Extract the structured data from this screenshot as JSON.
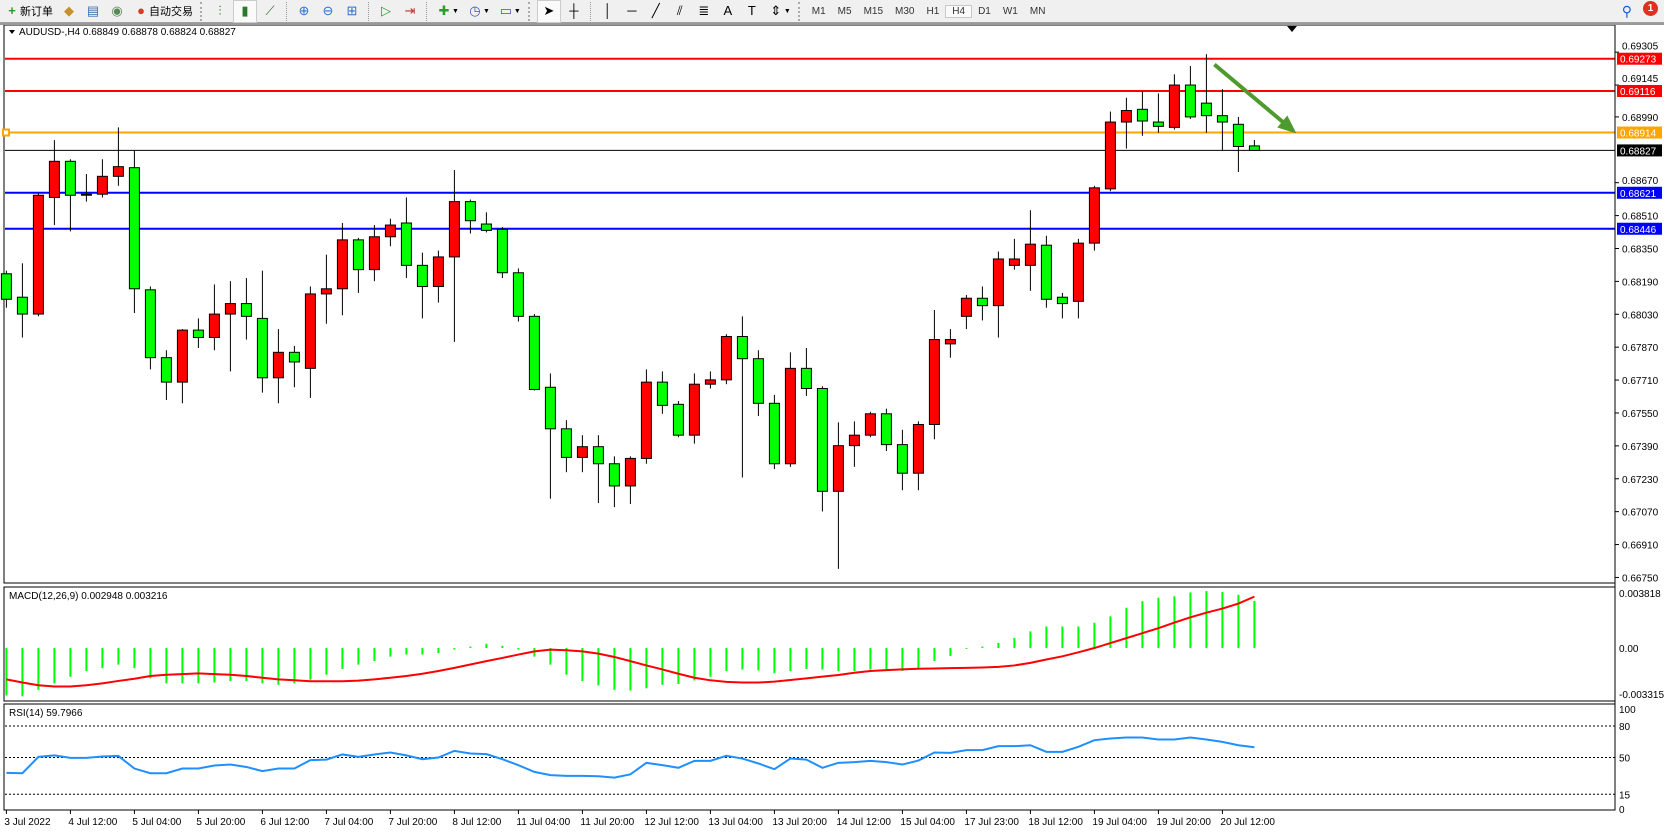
{
  "toolbar": {
    "new_order_label": "新订单",
    "auto_trading_label": "自动交易",
    "timeframes": [
      "M1",
      "M5",
      "M15",
      "M30",
      "H1",
      "H4",
      "D1",
      "W1",
      "MN"
    ],
    "active_timeframe": "H4",
    "notification_count": "1",
    "icons": [
      "new-order-icon",
      "market-watch-icon",
      "navigator-icon",
      "signals-icon",
      "auto-trading-icon",
      "bar-chart-icon",
      "candlestick-icon",
      "line-chart-icon",
      "zoom-in-icon",
      "zoom-out-icon",
      "tile-windows-icon",
      "auto-scroll-icon",
      "chart-shift-icon",
      "indicators-icon",
      "periods-icon",
      "templates-icon",
      "cursor-icon",
      "crosshair-icon",
      "vertical-line-icon",
      "horizontal-line-icon",
      "trendline-icon",
      "equidistant-channel-icon",
      "fibonacci-icon",
      "text-icon",
      "text-label-icon",
      "arrows-icon",
      "search-icon",
      "notification-icon"
    ]
  },
  "chart": {
    "header": "AUDUSD-,H4  0.68849 0.68878 0.68824 0.68827",
    "colors": {
      "up": "#ff0000",
      "down": "#00ff00",
      "macd_hist": "#00ff00",
      "signal": "#ff0000",
      "rsi": "#1e90ff",
      "arrow": "#4e9a2e"
    },
    "price_ticks": [
      "0.69305",
      "0.69145",
      "0.68990",
      "0.68670",
      "0.68510",
      "0.68350",
      "0.68190",
      "0.68030",
      "0.67870",
      "0.67710",
      "0.67550",
      "0.67390",
      "0.67230",
      "0.67070",
      "0.66910",
      "0.66750"
    ],
    "price_range": [
      0.66723,
      0.69437
    ],
    "levels": [
      {
        "price": "0.69273",
        "color": "#ff0000"
      },
      {
        "price": "0.69116",
        "color": "#ff0000"
      },
      {
        "price": "0.68914",
        "color": "#ffa500"
      },
      {
        "price": "0.68827",
        "color": "#000000"
      },
      {
        "price": "0.68621",
        "color": "#0000ff"
      },
      {
        "price": "0.68446",
        "color": "#0000ff"
      }
    ],
    "arrow": {
      "from": [
        75,
        0.69245
      ],
      "to": [
        80,
        0.6891
      ]
    },
    "time_labels": [
      "3 Jul 2022",
      "4 Jul 12:00",
      "5 Jul 04:00",
      "5 Jul 20:00",
      "6 Jul 12:00",
      "7 Jul 04:00",
      "7 Jul 20:00",
      "8 Jul 12:00",
      "11 Jul 04:00",
      "11 Jul 20:00",
      "12 Jul 12:00",
      "13 Jul 04:00",
      "13 Jul 20:00",
      "14 Jul 12:00",
      "15 Jul 04:00",
      "17 Jul 23:00",
      "18 Jul 12:00",
      "19 Jul 04:00",
      "19 Jul 20:00",
      "20 Jul 12:00"
    ],
    "ohlc": [
      [
        0.68227,
        0.68242,
        0.68062,
        0.68103
      ],
      [
        0.68113,
        0.68278,
        0.67917,
        0.68031
      ],
      [
        0.68031,
        0.68619,
        0.6802,
        0.68609
      ],
      [
        0.68598,
        0.68877,
        0.68464,
        0.68774
      ],
      [
        0.68774,
        0.68784,
        0.68433,
        0.68609
      ],
      [
        0.68614,
        0.68712,
        0.68578,
        0.68609
      ],
      [
        0.68614,
        0.68784,
        0.68598,
        0.68701
      ],
      [
        0.68701,
        0.68939,
        0.68655,
        0.68748
      ],
      [
        0.68743,
        0.68825,
        0.68036,
        0.68154
      ],
      [
        0.68149,
        0.68165,
        0.67762,
        0.67819
      ],
      [
        0.67819,
        0.67855,
        0.67613,
        0.677
      ],
      [
        0.677,
        0.67958,
        0.67597,
        0.67953
      ],
      [
        0.67953,
        0.6801,
        0.67866,
        0.67917
      ],
      [
        0.67917,
        0.68175,
        0.67855,
        0.68031
      ],
      [
        0.68031,
        0.68191,
        0.67752,
        0.68082
      ],
      [
        0.68082,
        0.68206,
        0.67907,
        0.6802
      ],
      [
        0.6801,
        0.68242,
        0.67649,
        0.67721
      ],
      [
        0.67721,
        0.67958,
        0.67597,
        0.67845
      ],
      [
        0.67845,
        0.67876,
        0.67675,
        0.67798
      ],
      [
        0.67767,
        0.68165,
        0.67623,
        0.68129
      ],
      [
        0.68129,
        0.6832,
        0.67984,
        0.68154
      ],
      [
        0.68154,
        0.68474,
        0.68025,
        0.68392
      ],
      [
        0.68392,
        0.68402,
        0.68134,
        0.68247
      ],
      [
        0.68247,
        0.68464,
        0.68191,
        0.68407
      ],
      [
        0.68407,
        0.68495,
        0.68361,
        0.68464
      ],
      [
        0.68474,
        0.68598,
        0.68206,
        0.68268
      ],
      [
        0.68268,
        0.6833,
        0.6801,
        0.68165
      ],
      [
        0.68165,
        0.6834,
        0.68087,
        0.68309
      ],
      [
        0.68309,
        0.68732,
        0.67896,
        0.68578
      ],
      [
        0.68578,
        0.68588,
        0.68423,
        0.68485
      ],
      [
        0.68469,
        0.68526,
        0.68428,
        0.68438
      ],
      [
        0.68443,
        0.68454,
        0.68206,
        0.68232
      ],
      [
        0.68232,
        0.68253,
        0.67995,
        0.6802
      ],
      [
        0.6802,
        0.68031,
        0.67659,
        0.67664
      ],
      [
        0.67675,
        0.67742,
        0.67133,
        0.67473
      ],
      [
        0.67473,
        0.67515,
        0.67262,
        0.67334
      ],
      [
        0.67334,
        0.67442,
        0.67262,
        0.67386
      ],
      [
        0.67386,
        0.67442,
        0.67112,
        0.67303
      ],
      [
        0.67303,
        0.67339,
        0.67092,
        0.67195
      ],
      [
        0.67195,
        0.67339,
        0.67107,
        0.67329
      ],
      [
        0.67329,
        0.67762,
        0.67303,
        0.677
      ],
      [
        0.677,
        0.67752,
        0.67546,
        0.67587
      ],
      [
        0.67592,
        0.67608,
        0.67432,
        0.67442
      ],
      [
        0.67442,
        0.67742,
        0.67401,
        0.6769
      ],
      [
        0.6769,
        0.67752,
        0.67669,
        0.67711
      ],
      [
        0.67711,
        0.67933,
        0.6769,
        0.67922
      ],
      [
        0.67922,
        0.6802,
        0.67236,
        0.67814
      ],
      [
        0.67814,
        0.67855,
        0.67535,
        0.67597
      ],
      [
        0.67597,
        0.67638,
        0.67277,
        0.67303
      ],
      [
        0.67303,
        0.67845,
        0.67288,
        0.67767
      ],
      [
        0.67767,
        0.67866,
        0.67633,
        0.67669
      ],
      [
        0.67669,
        0.6768,
        0.67071,
        0.67169
      ],
      [
        0.67169,
        0.67504,
        0.66792,
        0.67391
      ],
      [
        0.67391,
        0.67509,
        0.67288,
        0.67442
      ],
      [
        0.67442,
        0.67556,
        0.67432,
        0.67546
      ],
      [
        0.67546,
        0.67571,
        0.67365,
        0.67396
      ],
      [
        0.67396,
        0.67468,
        0.67174,
        0.67257
      ],
      [
        0.67257,
        0.67509,
        0.67174,
        0.67494
      ],
      [
        0.67494,
        0.68051,
        0.67422,
        0.67907
      ],
      [
        0.67886,
        0.67958,
        0.67819,
        0.67907
      ],
      [
        0.6802,
        0.68124,
        0.67958,
        0.68108
      ],
      [
        0.68108,
        0.68165,
        0.68,
        0.68072
      ],
      [
        0.68072,
        0.68335,
        0.67917,
        0.68299
      ],
      [
        0.68268,
        0.68397,
        0.68247,
        0.68299
      ],
      [
        0.68268,
        0.68536,
        0.68144,
        0.68371
      ],
      [
        0.68366,
        0.68412,
        0.68062,
        0.68103
      ],
      [
        0.68113,
        0.68134,
        0.6801,
        0.68082
      ],
      [
        0.68093,
        0.68397,
        0.6801,
        0.68376
      ],
      [
        0.68376,
        0.68655,
        0.6834,
        0.68645
      ],
      [
        0.6864,
        0.69016,
        0.68629,
        0.68965
      ],
      [
        0.68965,
        0.69083,
        0.68836,
        0.69021
      ],
      [
        0.69027,
        0.69114,
        0.68898,
        0.6897
      ],
      [
        0.68965,
        0.69104,
        0.68913,
        0.68944
      ],
      [
        0.68939,
        0.69197,
        0.68928,
        0.69145
      ],
      [
        0.69145,
        0.69238,
        0.6898,
        0.6899
      ],
      [
        0.69057,
        0.69295,
        0.68913,
        0.68996
      ],
      [
        0.68996,
        0.69125,
        0.68825,
        0.68965
      ],
      [
        0.68954,
        0.6899,
        0.68722,
        0.68846
      ],
      [
        0.68849,
        0.68878,
        0.68824,
        0.68827
      ]
    ]
  },
  "macd": {
    "label": "MACD(12,26,9) 0.002948 0.003216",
    "ticks": [
      "0.003818",
      "0.00",
      "-0.003315"
    ],
    "range": [
      -0.003315,
      0.003818
    ],
    "histogram_milli": [
      -2.97,
      -3.02,
      -2.61,
      -2.21,
      -1.8,
      -1.44,
      -1.26,
      -1.04,
      -1.26,
      -1.89,
      -2.21,
      -2.21,
      -2.21,
      -2.16,
      -2.07,
      -2.07,
      -2.21,
      -2.3,
      -2.21,
      -1.98,
      -1.67,
      -1.31,
      -1.04,
      -0.81,
      -0.54,
      -0.41,
      -0.41,
      -0.32,
      -0.09,
      0.09,
      0.27,
      0.14,
      -0.09,
      -0.54,
      -1.04,
      -1.67,
      -2.07,
      -2.34,
      -2.61,
      -2.66,
      -2.52,
      -2.3,
      -2.25,
      -2.03,
      -1.8,
      -1.44,
      -1.35,
      -1.4,
      -1.58,
      -1.44,
      -1.31,
      -1.35,
      -1.44,
      -1.44,
      -1.35,
      -1.31,
      -1.44,
      -1.26,
      -0.81,
      -0.5,
      -0.05,
      0.09,
      0.32,
      0.63,
      1.04,
      1.35,
      1.35,
      1.35,
      1.58,
      1.98,
      2.52,
      2.93,
      3.15,
      3.24,
      3.47,
      3.56,
      3.51,
      3.33,
      2.948
    ],
    "signal_milli": [
      -1.96,
      -2.16,
      -2.33,
      -2.41,
      -2.41,
      -2.33,
      -2.21,
      -2.06,
      -1.92,
      -1.75,
      -1.67,
      -1.63,
      -1.59,
      -1.63,
      -1.67,
      -1.75,
      -1.86,
      -1.96,
      -2.02,
      -2.08,
      -2.08,
      -2.08,
      -2.04,
      -1.96,
      -1.86,
      -1.75,
      -1.61,
      -1.44,
      -1.24,
      -1.03,
      -0.82,
      -0.62,
      -0.41,
      -0.21,
      -0.1,
      -0.14,
      -0.21,
      -0.35,
      -0.56,
      -0.82,
      -1.09,
      -1.34,
      -1.61,
      -1.86,
      -2.02,
      -2.12,
      -2.16,
      -2.16,
      -2.1,
      -2.0,
      -1.9,
      -1.79,
      -1.69,
      -1.55,
      -1.44,
      -1.38,
      -1.34,
      -1.3,
      -1.28,
      -1.26,
      -1.24,
      -1.22,
      -1.18,
      -1.09,
      -0.93,
      -0.72,
      -0.52,
      -0.27,
      0.0,
      0.31,
      0.62,
      0.93,
      1.24,
      1.59,
      1.92,
      2.21,
      2.47,
      2.78,
      3.216
    ]
  },
  "rsi": {
    "label": "RSI(14) 59.7966",
    "ticks": [
      "100",
      "80",
      "50",
      "15",
      "0"
    ],
    "levels": [
      80,
      50,
      15
    ],
    "values": [
      35.4,
      35,
      50.6,
      52,
      49.7,
      49.7,
      51,
      51.5,
      39.5,
      35,
      35,
      39.5,
      39.5,
      42.4,
      43.3,
      41,
      37,
      39.5,
      39.5,
      47.5,
      48,
      52.9,
      50.6,
      52.9,
      54.8,
      52,
      48.4,
      50,
      56.3,
      53.8,
      53.2,
      48.4,
      42.7,
      36.3,
      33.2,
      32.5,
      32.5,
      32.1,
      30.8,
      34,
      44.9,
      42.7,
      40.2,
      46.8,
      46.8,
      51.6,
      49,
      44.3,
      38.9,
      49,
      48,
      40.2,
      44.9,
      45.6,
      46.8,
      45.6,
      43.3,
      47.1,
      54.8,
      54.4,
      57,
      57,
      60.8,
      60.8,
      61.7,
      55.4,
      55.4,
      60.2,
      66.5,
      68.1,
      69,
      69,
      67.1,
      67.1,
      69,
      67.1,
      64.9,
      61.7,
      59.8
    ]
  }
}
